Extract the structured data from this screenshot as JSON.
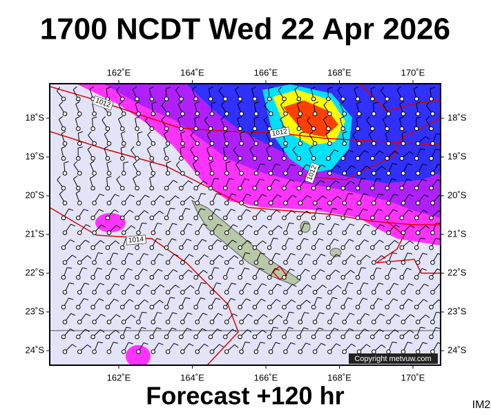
{
  "header": {
    "title": "1700 NCDT Wed 22 Apr 2026"
  },
  "map": {
    "lon_labels": [
      "162˚E",
      "164˚E",
      "166˚E",
      "168˚E",
      "170˚E"
    ],
    "lat_labels": [
      "18˚S",
      "19˚S",
      "20˚S",
      "21˚S",
      "22˚S",
      "23˚S",
      "24˚S"
    ],
    "isobar_labels": [
      "1012",
      "1012",
      "1012",
      "1014"
    ],
    "copyright": "Copyright metvuw.com"
  },
  "footer": {
    "forecast": "Forecast +120 hr",
    "image_id": "IM2"
  }
}
